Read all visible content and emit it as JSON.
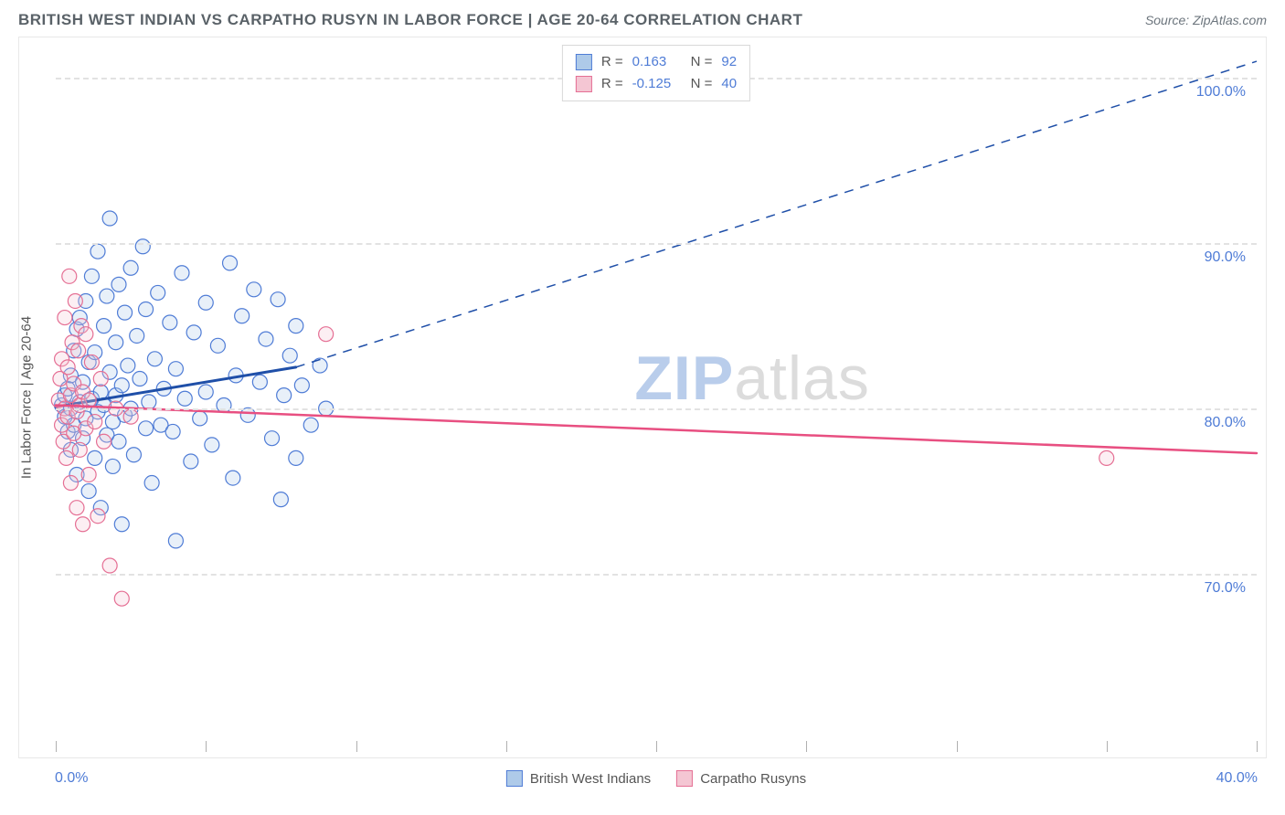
{
  "title": "BRITISH WEST INDIAN VS CARPATHO RUSYN IN LABOR FORCE | AGE 20-64 CORRELATION CHART",
  "source": "Source: ZipAtlas.com",
  "watermark": {
    "bold": "ZIP",
    "rest": "atlas"
  },
  "y_axis_title": "In Labor Force | Age 20-64",
  "chart": {
    "type": "scatter",
    "background_color": "#ffffff",
    "grid_color": "#e2e2e2",
    "axis_text_color": "#4f7cd6",
    "xlim": [
      0,
      40
    ],
    "ylim": [
      60,
      102
    ],
    "x_ticks": [
      0,
      5,
      10,
      15,
      20,
      25,
      30,
      35,
      40
    ],
    "x_tick_labels": {
      "min": "0.0%",
      "max": "40.0%"
    },
    "y_ticks": [
      {
        "v": 70,
        "label": "70.0%"
      },
      {
        "v": 80,
        "label": "80.0%"
      },
      {
        "v": 90,
        "label": "90.0%"
      },
      {
        "v": 100,
        "label": "100.0%"
      }
    ],
    "marker_radius": 8,
    "marker_stroke_width": 1.2,
    "marker_fill_opacity": 0.28,
    "series": [
      {
        "id": "bwi",
        "label": "British West Indians",
        "color_fill": "#aecae9",
        "color_stroke": "#4f7cd6",
        "R": "0.163",
        "N": "92",
        "trend": {
          "color": "#1f4fa8",
          "solid_width": 3,
          "dashed_width": 1.5,
          "solid": {
            "x1": 0,
            "y1": 80.1,
            "x2": 8,
            "y2": 82.5
          },
          "dashed": {
            "x1": 8,
            "y1": 82.5,
            "x2": 40,
            "y2": 101.0
          }
        },
        "points": [
          [
            0.2,
            80.2
          ],
          [
            0.3,
            80.8
          ],
          [
            0.3,
            79.5
          ],
          [
            0.4,
            81.2
          ],
          [
            0.4,
            78.6
          ],
          [
            0.5,
            82.0
          ],
          [
            0.5,
            80.0
          ],
          [
            0.5,
            77.5
          ],
          [
            0.6,
            83.5
          ],
          [
            0.6,
            79.0
          ],
          [
            0.7,
            84.8
          ],
          [
            0.7,
            76.0
          ],
          [
            0.8,
            80.4
          ],
          [
            0.8,
            85.5
          ],
          [
            0.9,
            78.2
          ],
          [
            0.9,
            81.6
          ],
          [
            1.0,
            86.5
          ],
          [
            1.0,
            79.4
          ],
          [
            1.1,
            82.8
          ],
          [
            1.1,
            75.0
          ],
          [
            1.2,
            88.0
          ],
          [
            1.2,
            80.6
          ],
          [
            1.3,
            77.0
          ],
          [
            1.3,
            83.4
          ],
          [
            1.4,
            89.5
          ],
          [
            1.4,
            79.8
          ],
          [
            1.5,
            81.0
          ],
          [
            1.5,
            74.0
          ],
          [
            1.6,
            85.0
          ],
          [
            1.6,
            80.2
          ],
          [
            1.7,
            78.4
          ],
          [
            1.7,
            86.8
          ],
          [
            1.8,
            82.2
          ],
          [
            1.8,
            91.5
          ],
          [
            1.9,
            79.2
          ],
          [
            1.9,
            76.5
          ],
          [
            2.0,
            84.0
          ],
          [
            2.0,
            80.8
          ],
          [
            2.1,
            87.5
          ],
          [
            2.1,
            78.0
          ],
          [
            2.2,
            81.4
          ],
          [
            2.2,
            73.0
          ],
          [
            2.3,
            85.8
          ],
          [
            2.3,
            79.6
          ],
          [
            2.4,
            82.6
          ],
          [
            2.5,
            88.5
          ],
          [
            2.5,
            80.0
          ],
          [
            2.6,
            77.2
          ],
          [
            2.7,
            84.4
          ],
          [
            2.8,
            81.8
          ],
          [
            2.9,
            89.8
          ],
          [
            3.0,
            78.8
          ],
          [
            3.0,
            86.0
          ],
          [
            3.1,
            80.4
          ],
          [
            3.2,
            75.5
          ],
          [
            3.3,
            83.0
          ],
          [
            3.4,
            87.0
          ],
          [
            3.5,
            79.0
          ],
          [
            3.6,
            81.2
          ],
          [
            3.8,
            85.2
          ],
          [
            3.9,
            78.6
          ],
          [
            4.0,
            72.0
          ],
          [
            4.0,
            82.4
          ],
          [
            4.2,
            88.2
          ],
          [
            4.3,
            80.6
          ],
          [
            4.5,
            76.8
          ],
          [
            4.6,
            84.6
          ],
          [
            4.8,
            79.4
          ],
          [
            5.0,
            86.4
          ],
          [
            5.0,
            81.0
          ],
          [
            5.2,
            77.8
          ],
          [
            5.4,
            83.8
          ],
          [
            5.6,
            80.2
          ],
          [
            5.8,
            88.8
          ],
          [
            5.9,
            75.8
          ],
          [
            6.0,
            82.0
          ],
          [
            6.2,
            85.6
          ],
          [
            6.4,
            79.6
          ],
          [
            6.6,
            87.2
          ],
          [
            6.8,
            81.6
          ],
          [
            7.0,
            84.2
          ],
          [
            7.2,
            78.2
          ],
          [
            7.4,
            86.6
          ],
          [
            7.5,
            74.5
          ],
          [
            7.6,
            80.8
          ],
          [
            7.8,
            83.2
          ],
          [
            8.0,
            77.0
          ],
          [
            8.0,
            85.0
          ],
          [
            8.2,
            81.4
          ],
          [
            8.5,
            79.0
          ],
          [
            8.8,
            82.6
          ],
          [
            9.0,
            80.0
          ]
        ]
      },
      {
        "id": "cr",
        "label": "Carpatho Rusyns",
        "color_fill": "#f4c6d3",
        "color_stroke": "#e56f94",
        "R": "-0.125",
        "N": "40",
        "trend": {
          "color": "#e84f81",
          "solid_width": 2.5,
          "dashed_width": 0,
          "solid": {
            "x1": 0,
            "y1": 80.2,
            "x2": 40,
            "y2": 77.3
          },
          "dashed": null
        },
        "points": [
          [
            0.1,
            80.5
          ],
          [
            0.15,
            81.8
          ],
          [
            0.2,
            79.0
          ],
          [
            0.2,
            83.0
          ],
          [
            0.25,
            78.0
          ],
          [
            0.3,
            80.0
          ],
          [
            0.3,
            85.5
          ],
          [
            0.35,
            77.0
          ],
          [
            0.4,
            82.5
          ],
          [
            0.4,
            79.5
          ],
          [
            0.45,
            88.0
          ],
          [
            0.5,
            75.5
          ],
          [
            0.5,
            80.8
          ],
          [
            0.55,
            84.0
          ],
          [
            0.6,
            78.5
          ],
          [
            0.6,
            81.5
          ],
          [
            0.65,
            86.5
          ],
          [
            0.7,
            74.0
          ],
          [
            0.7,
            79.8
          ],
          [
            0.75,
            83.5
          ],
          [
            0.8,
            77.5
          ],
          [
            0.8,
            80.2
          ],
          [
            0.85,
            85.0
          ],
          [
            0.9,
            73.0
          ],
          [
            0.9,
            81.0
          ],
          [
            1.0,
            78.8
          ],
          [
            1.0,
            84.5
          ],
          [
            1.1,
            76.0
          ],
          [
            1.1,
            80.5
          ],
          [
            1.2,
            82.8
          ],
          [
            1.3,
            79.2
          ],
          [
            1.4,
            73.5
          ],
          [
            1.5,
            81.8
          ],
          [
            1.6,
            78.0
          ],
          [
            1.8,
            70.5
          ],
          [
            2.0,
            80.0
          ],
          [
            2.2,
            68.5
          ],
          [
            2.5,
            79.5
          ],
          [
            9.0,
            84.5
          ],
          [
            35.0,
            77.0
          ]
        ]
      }
    ]
  },
  "bottom_legend": [
    {
      "label": "British West Indians",
      "fill": "#aecae9",
      "stroke": "#4f7cd6"
    },
    {
      "label": "Carpatho Rusyns",
      "fill": "#f4c6d3",
      "stroke": "#e56f94"
    }
  ]
}
